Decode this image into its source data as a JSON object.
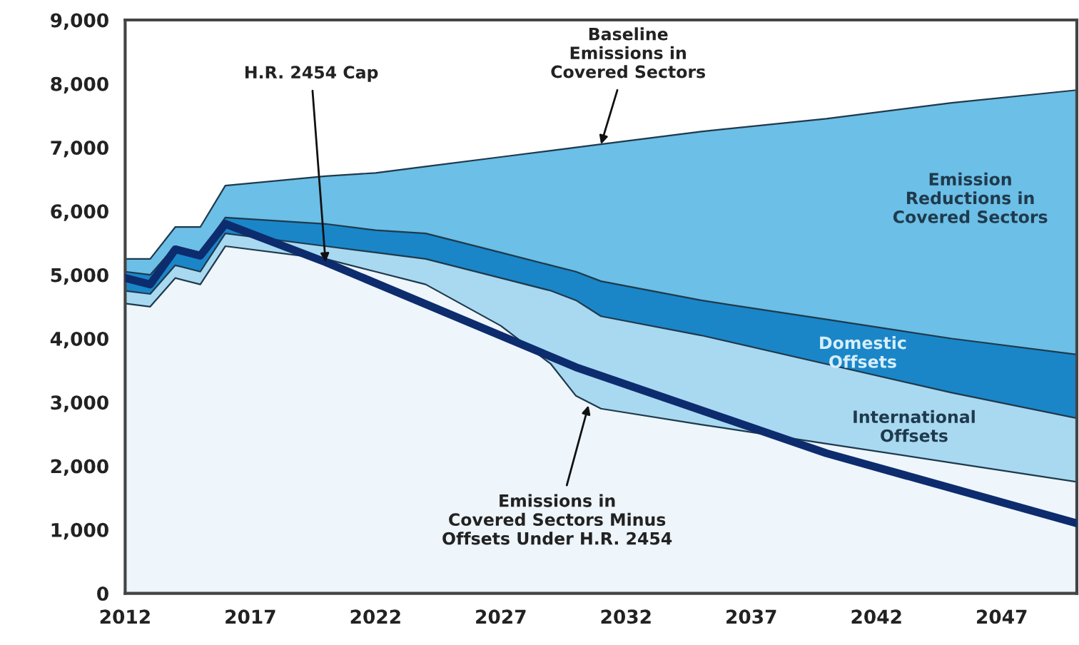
{
  "chart_data": {
    "type": "area",
    "stacked": true,
    "x": [
      2012,
      2013,
      2014,
      2015,
      2016,
      2020,
      2022,
      2024,
      2027,
      2029,
      2030,
      2031,
      2035,
      2040,
      2045,
      2050
    ],
    "series": [
      {
        "color": "#eef5fb",
        "values": [
          4550,
          4500,
          4950,
          4850,
          5450,
          5250,
          5050,
          4850,
          4200,
          3600,
          3100,
          2900,
          2650,
          2350,
          2050,
          1750
        ]
      },
      {
        "color": "#a9d9f1",
        "values": [
          200,
          200,
          200,
          200,
          200,
          200,
          300,
          400,
          750,
          1150,
          1500,
          1450,
          1400,
          1250,
          1100,
          1000
        ]
      },
      {
        "color": "#1a86c8",
        "values": [
          300,
          300,
          300,
          300,
          250,
          350,
          350,
          400,
          400,
          400,
          450,
          550,
          550,
          700,
          850,
          1000
        ]
      },
      {
        "color": "#6cbfe6",
        "values": [
          200,
          250,
          300,
          400,
          500,
          750,
          900,
          1050,
          1500,
          1800,
          1950,
          2150,
          2650,
          3150,
          3700,
          4150
        ]
      },
      {
        "type": "line",
        "color": "#0d2c6e",
        "x": [
          2012,
          2013,
          2014,
          2015,
          2016,
          2020,
          2030,
          2040,
          2050
        ],
        "values": [
          4950,
          4850,
          5400,
          5300,
          5800,
          5200,
          3550,
          2200,
          1100
        ]
      }
    ],
    "xlim": [
      2012,
      2050
    ],
    "xticks": [
      2012,
      2017,
      2022,
      2027,
      2032,
      2037,
      2042,
      2047
    ],
    "ylim": [
      0,
      9000
    ],
    "yticks": [
      0,
      {
        "value": 1000,
        "label": "1,000"
      },
      {
        "value": 2000,
        "label": "2,000"
      },
      {
        "value": 3000,
        "label": "3,000"
      },
      {
        "value": 4000,
        "label": "4,000"
      },
      {
        "value": 5000,
        "label": "5,000"
      },
      {
        "value": 6000,
        "label": "6,000"
      },
      {
        "value": 7000,
        "label": "7,000"
      },
      {
        "value": 8000,
        "label": "8,000"
      },
      {
        "value": 9000,
        "label": "9,000"
      }
    ],
    "annotations": [
      {
        "text": "H.R. 2454 Cap",
        "x": 2020,
        "y": 5200
      },
      {
        "text": "Baseline\nEmissions in\nCovered Sectors",
        "x": 2031,
        "y": 7050
      },
      "Emission\nReductions in\nCovered Sectors",
      "Domestic\nOffsets",
      "International\nOffsets",
      {
        "text": "Emissions in\nCovered Sectors Minus\nOffsets Under H.R. 2454",
        "x": 2030.5,
        "y": 2950
      }
    ],
    "grid": false
  }
}
